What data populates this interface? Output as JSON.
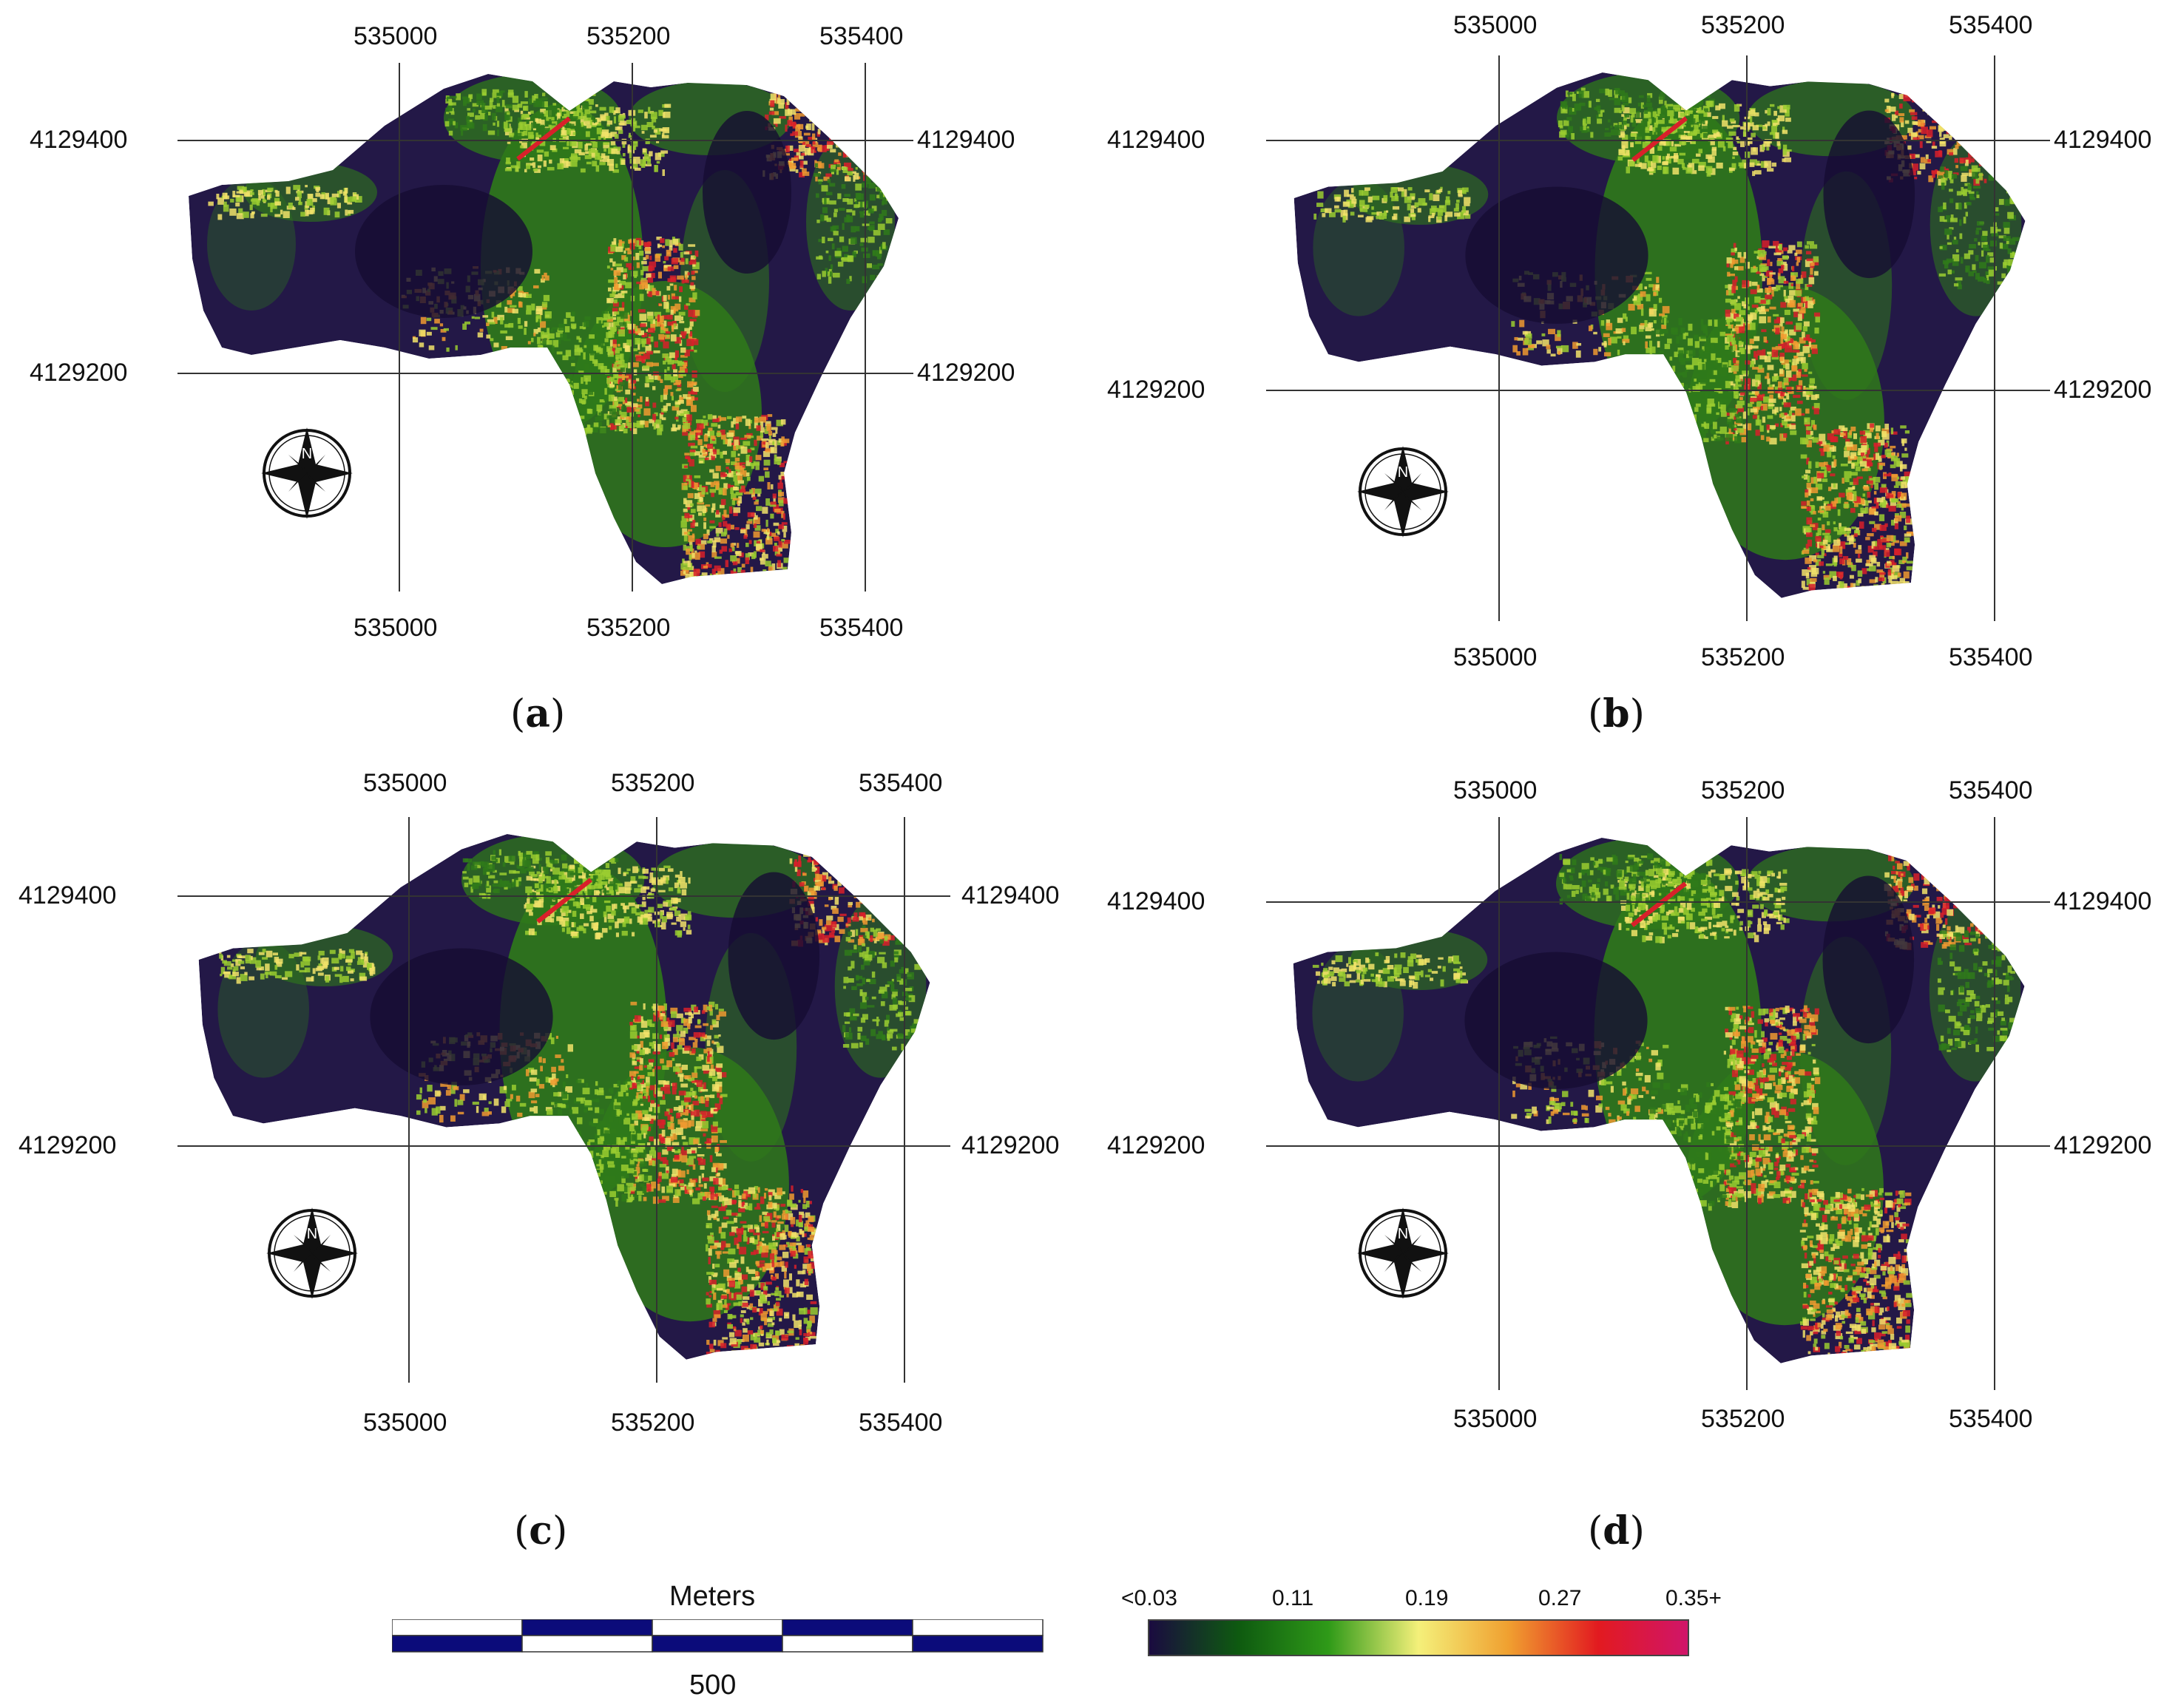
{
  "panels": [
    {
      "id": "a",
      "caption_letter": "a",
      "x_ticks": [
        "535000",
        "535200",
        "535400"
      ],
      "y_ticks": [
        "4129400",
        "4129200"
      ]
    },
    {
      "id": "b",
      "caption_letter": "b",
      "x_ticks": [
        "535000",
        "535200",
        "535400"
      ],
      "y_ticks": [
        "4129400",
        "4129200"
      ]
    },
    {
      "id": "c",
      "caption_letter": "c",
      "x_ticks": [
        "535000",
        "535200",
        "535400"
      ],
      "y_ticks": [
        "4129400",
        "4129200"
      ]
    },
    {
      "id": "d",
      "caption_letter": "d",
      "x_ticks": [
        "535000",
        "535200",
        "535400"
      ],
      "y_ticks": [
        "4129400",
        "4129200"
      ]
    }
  ],
  "compass": {
    "label": "N",
    "icon": "north-arrow-compass-icon"
  },
  "scalebar": {
    "title": "Meters",
    "value_label": "500",
    "color": "#0b0b7a"
  },
  "legend": {
    "labels": [
      "<0.03",
      "0.11",
      "0.19",
      "0.27",
      "0.35+"
    ],
    "colors": [
      "#1a0a40",
      "#0e5a10",
      "#2f9a18",
      "#f4f07a",
      "#f0a030",
      "#e21a20",
      "#d0156a"
    ]
  },
  "map_colors": {
    "dark": "#231847",
    "green": "#2f7a1a",
    "lightgreen": "#9acc30",
    "yellow": "#f2e36a",
    "orange": "#f09a30",
    "red": "#d8202a"
  }
}
